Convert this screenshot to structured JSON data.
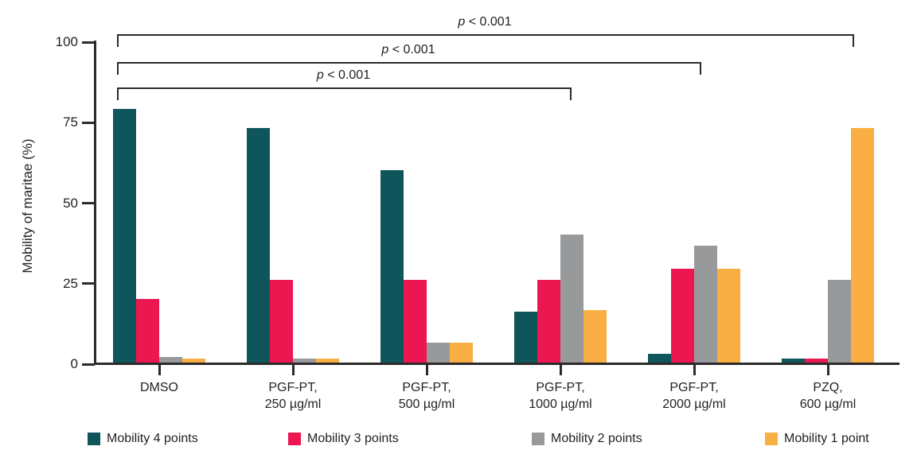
{
  "chart_data": {
    "type": "bar",
    "ylabel": "Mobility of maritae (%)",
    "ylim": [
      0,
      100
    ],
    "yticks": [
      0,
      25,
      50,
      75,
      100
    ],
    "grid": false,
    "legend_position": "bottom",
    "categories": [
      "DMSO",
      "PGF-PT,\n250 µg/ml",
      "PGF-PT,\n500 µg/ml",
      "PGF-PT,\n1000 µg/ml",
      "PGF-PT,\n2000 µg/ml",
      "PZQ,\n600 µg/ml"
    ],
    "series": [
      {
        "name": "Mobility 4 points",
        "color": "#0F565C",
        "values": [
          79,
          73,
          60,
          16,
          3,
          1.5
        ]
      },
      {
        "name": "Mobility 3 points",
        "color": "#EC1651",
        "values": [
          20,
          26,
          26,
          26,
          29.5,
          1.5
        ]
      },
      {
        "name": "Mobility 2 points",
        "color": "#98999B",
        "values": [
          2,
          1.5,
          6.5,
          40,
          36.5,
          26
        ]
      },
      {
        "name": "Mobility 1 point",
        "color": "#F9AF43",
        "values": [
          1.5,
          1.5,
          6.5,
          16.5,
          29.5,
          73
        ]
      }
    ],
    "significance_brackets": [
      {
        "label": "p < 0.001",
        "from": 0,
        "to": 5
      },
      {
        "label": "p < 0.001",
        "from": 0,
        "to": 4
      },
      {
        "label": "p < 0.001",
        "from": 0,
        "to": 3
      }
    ]
  }
}
